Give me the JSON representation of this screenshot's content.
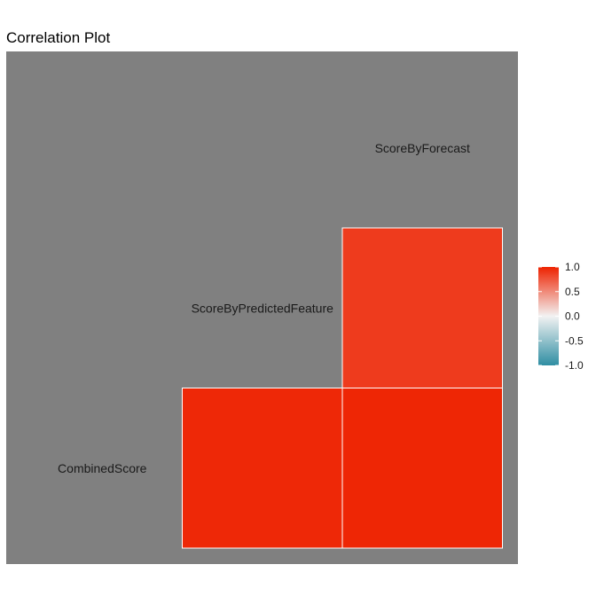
{
  "chart_data": {
    "type": "heatmap",
    "title": "Correlation Plot",
    "variables": [
      "CombinedScore",
      "ScoreByPredictedFeature",
      "ScoreByForecast"
    ],
    "cells": [
      {
        "row": "ScoreByPredictedFeature",
        "col": "ScoreByForecast",
        "value": 0.88
      },
      {
        "row": "CombinedScore",
        "col": "ScoreByPredictedFeature",
        "value": 0.97
      },
      {
        "row": "CombinedScore",
        "col": "ScoreByForecast",
        "value": 0.98
      }
    ],
    "color_scale": {
      "low": "#2f8ea3",
      "mid": "#f2f2f2",
      "high": "#ee2200",
      "limits": [
        -1,
        1
      ]
    },
    "legend": {
      "placement": "right",
      "ticks": [
        1.0,
        0.5,
        0.0,
        -0.5,
        -1.0
      ],
      "tick_labels": [
        "1.0",
        "0.5",
        "0.0",
        "-0.5",
        "-1.0"
      ]
    },
    "panel_background": "#808080",
    "grid": false
  }
}
